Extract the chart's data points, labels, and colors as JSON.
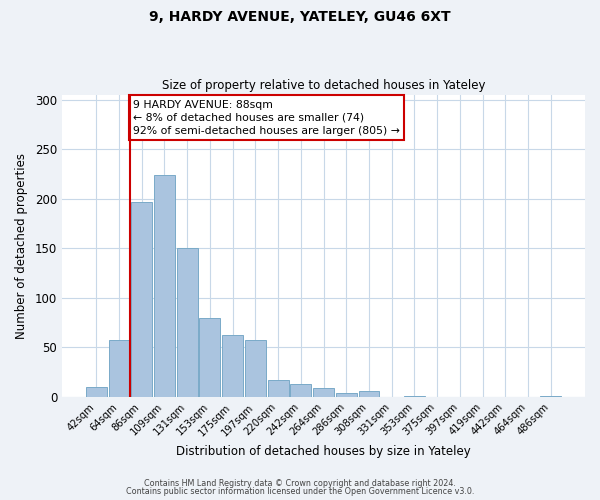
{
  "title_line1": "9, HARDY AVENUE, YATELEY, GU46 6XT",
  "title_line2": "Size of property relative to detached houses in Yateley",
  "xlabel": "Distribution of detached houses by size in Yateley",
  "ylabel": "Number of detached properties",
  "bar_labels": [
    "42sqm",
    "64sqm",
    "86sqm",
    "109sqm",
    "131sqm",
    "153sqm",
    "175sqm",
    "197sqm",
    "220sqm",
    "242sqm",
    "264sqm",
    "286sqm",
    "308sqm",
    "331sqm",
    "353sqm",
    "375sqm",
    "397sqm",
    "419sqm",
    "442sqm",
    "464sqm",
    "486sqm"
  ],
  "bar_values": [
    10,
    58,
    197,
    224,
    150,
    80,
    63,
    58,
    17,
    13,
    9,
    4,
    6,
    0,
    1,
    0,
    0,
    0,
    0,
    0,
    1
  ],
  "bar_color": "#aac4df",
  "bar_edge_color": "#7aaac8",
  "vline_index": 2,
  "vline_color": "#cc0000",
  "annotation_text": "9 HARDY AVENUE: 88sqm\n← 8% of detached houses are smaller (74)\n92% of semi-detached houses are larger (805) →",
  "annotation_box_color": "#ffffff",
  "annotation_box_edge": "#cc0000",
  "ylim": [
    0,
    305
  ],
  "yticks": [
    0,
    50,
    100,
    150,
    200,
    250,
    300
  ],
  "footer_line1": "Contains HM Land Registry data © Crown copyright and database right 2024.",
  "footer_line2": "Contains public sector information licensed under the Open Government Licence v3.0.",
  "bg_color": "#eef2f7",
  "plot_bg_color": "#ffffff",
  "grid_color": "#c8d8e8"
}
